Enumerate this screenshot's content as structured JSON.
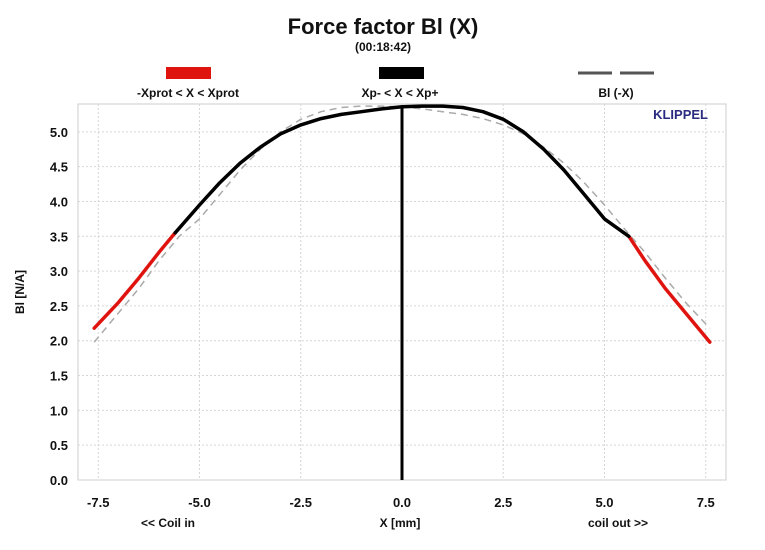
{
  "chart_data": {
    "type": "line",
    "title": "Force factor Bl (X)",
    "subtitle": "(00:18:42)",
    "brand": "KLIPPEL",
    "xlabel": "X [mm]",
    "xlabel_left": "<< Coil in",
    "xlabel_right": "coil out >>",
    "ylabel": "Bl [N/A]",
    "xlim": [
      -8,
      8
    ],
    "ylim": [
      0,
      5.4
    ],
    "xticks": [
      -7.5,
      -5.0,
      -2.5,
      0.0,
      2.5,
      5.0,
      7.5
    ],
    "xtick_labels": [
      "-7.5",
      "-5.0",
      "-2.5",
      "0.0",
      "2.5",
      "5.0",
      "7.5"
    ],
    "yticks": [
      0.0,
      0.5,
      1.0,
      1.5,
      2.0,
      2.5,
      3.0,
      3.5,
      4.0,
      4.5,
      5.0
    ],
    "ytick_labels": [
      "0.0",
      "0.5",
      "1.0",
      "1.5",
      "2.0",
      "2.5",
      "3.0",
      "3.5",
      "4.0",
      "4.5",
      "5.0"
    ],
    "grid": true,
    "legend_position": "top",
    "legend": [
      {
        "label": "-Xprot < X < Xprot",
        "color": "#e0140f",
        "style": "solid"
      },
      {
        "label": "Xp- < X < Xp+",
        "color": "#000000",
        "style": "solid"
      },
      {
        "label": "Bl (-X)",
        "color": "#555555",
        "style": "dashed"
      }
    ],
    "series": [
      {
        "name": "-Xprot < X < Xprot",
        "color": "#e0140f",
        "segments": [
          {
            "x": [
              -7.6,
              -7.0,
              -6.5,
              -6.0,
              -5.6
            ],
            "y": [
              2.18,
              2.55,
              2.9,
              3.27,
              3.55
            ]
          },
          {
            "x": [
              5.6,
              6.0,
              6.5,
              7.0,
              7.6
            ],
            "y": [
              3.5,
              3.15,
              2.75,
              2.4,
              1.98
            ]
          }
        ]
      },
      {
        "name": "Xp- < X < Xp+",
        "color": "#000000",
        "x": [
          -5.6,
          -5.0,
          -4.5,
          -4.0,
          -3.5,
          -3.0,
          -2.5,
          -2.0,
          -1.5,
          -1.0,
          -0.5,
          0.0,
          0.5,
          1.0,
          1.5,
          2.0,
          2.5,
          3.0,
          3.5,
          4.0,
          4.5,
          5.0,
          5.6
        ],
        "y": [
          3.55,
          3.95,
          4.27,
          4.55,
          4.78,
          4.97,
          5.1,
          5.19,
          5.25,
          5.29,
          5.33,
          5.36,
          5.37,
          5.37,
          5.35,
          5.29,
          5.18,
          5.0,
          4.75,
          4.45,
          4.1,
          3.75,
          3.5
        ]
      },
      {
        "name": "Bl (-X)",
        "color": "#aaaaaa",
        "dashed": true,
        "x": [
          -7.6,
          -7.0,
          -6.5,
          -6.0,
          -5.5,
          -5.0,
          -4.5,
          -4.0,
          -3.5,
          -3.0,
          -2.5,
          -2.0,
          -1.5,
          -1.0,
          -0.5,
          0.0,
          0.5,
          1.0,
          1.5,
          2.0,
          2.5,
          3.0,
          3.5,
          4.0,
          4.5,
          5.0,
          5.5,
          6.0,
          6.5,
          7.0,
          7.6
        ],
        "y": [
          1.98,
          2.4,
          2.75,
          3.15,
          3.5,
          3.75,
          4.1,
          4.45,
          4.75,
          5.0,
          5.18,
          5.29,
          5.35,
          5.37,
          5.37,
          5.36,
          5.33,
          5.29,
          5.25,
          5.19,
          5.1,
          4.97,
          4.78,
          4.55,
          4.27,
          3.95,
          3.6,
          3.27,
          2.9,
          2.55,
          2.18
        ]
      }
    ],
    "vertical_marker": {
      "x": 0.0,
      "color": "#000000"
    }
  }
}
